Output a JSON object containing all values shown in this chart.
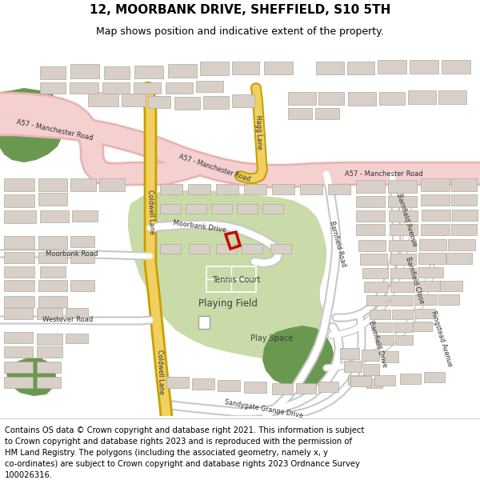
{
  "title": "12, MOORBANK DRIVE, SHEFFIELD, S10 5TH",
  "subtitle": "Map shows position and indicative extent of the property.",
  "footer": "Contains OS data © Crown copyright and database right 2021. This information is subject\nto Crown copyright and database rights 2023 and is reproduced with the permission of\nHM Land Registry. The polygons (including the associated geometry, namely x, y\nco-ordinates) are subject to Crown copyright and database rights 2023 Ordnance Survey\n100026316.",
  "map_bg": "#ffffff",
  "road_pink_outer": "#e8b4b4",
  "road_pink_inner": "#f5d0d0",
  "road_yellow_outer": "#c8a000",
  "road_yellow_inner": "#f0d060",
  "road_white_outer": "#c8c8c8",
  "road_white_inner": "#ffffff",
  "green_field": "#c8dba8",
  "green_dark": "#6a9850",
  "building_fill": "#d8d0c8",
  "building_edge": "#b0a898",
  "text_dark": "#303030",
  "property_red": "#cc0000",
  "title_fontsize": 11,
  "subtitle_fontsize": 9,
  "footer_fontsize": 7.2
}
